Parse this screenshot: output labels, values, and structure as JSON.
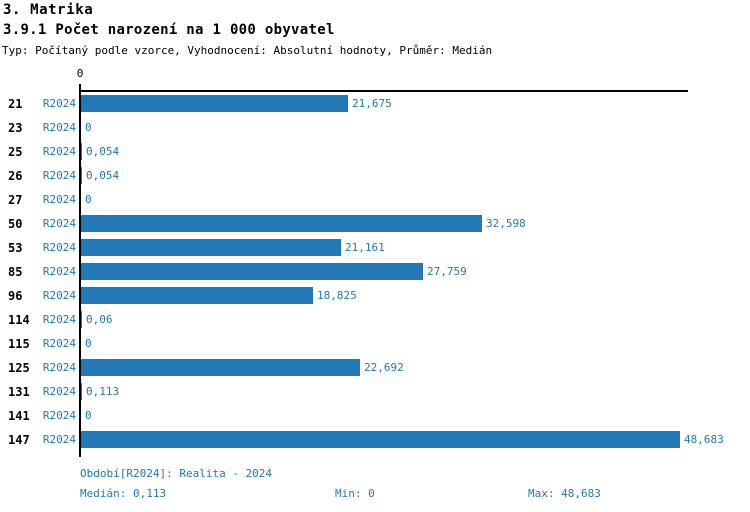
{
  "header": {
    "title": "3. Matrika",
    "subtitle": "3.9.1 Počet narození na 1 000 obyvatel",
    "meta": "Typ: Počítaný podle vzorce, Vyhodnocení: Absolutní hodnoty, Průměr: Medián"
  },
  "chart_data": {
    "type": "bar",
    "orientation": "horizontal",
    "title": "3.9.1 Počet narození na 1 000 obyvatel",
    "categories": [
      "21",
      "23",
      "25",
      "26",
      "27",
      "50",
      "53",
      "85",
      "96",
      "114",
      "115",
      "125",
      "131",
      "141",
      "147"
    ],
    "series": [
      {
        "name": "R2024",
        "values": [
          21.675,
          0,
          0.054,
          0.054,
          0,
          32.598,
          21.161,
          27.759,
          18.825,
          0.06,
          0,
          22.692,
          0.113,
          0,
          48.683
        ]
      }
    ],
    "value_labels": [
      "21,675",
      "0",
      "0,054",
      "0,054",
      "0",
      "32,598",
      "21,161",
      "27,759",
      "18,825",
      "0,06",
      "0",
      "22,692",
      "0,113",
      "0",
      "48,683"
    ],
    "xlim": [
      0,
      48.683
    ],
    "x_tick_labels": [
      "0"
    ],
    "grid": false,
    "legend_position": "none",
    "bar_color": "#2277b4",
    "axis_color": "#000000"
  },
  "footer": {
    "period_label": "Období[R2024]: Realita - 2024",
    "median_label": "Medián: 0,113",
    "min_label": "Min: 0",
    "max_label": "Max: 48,683"
  }
}
